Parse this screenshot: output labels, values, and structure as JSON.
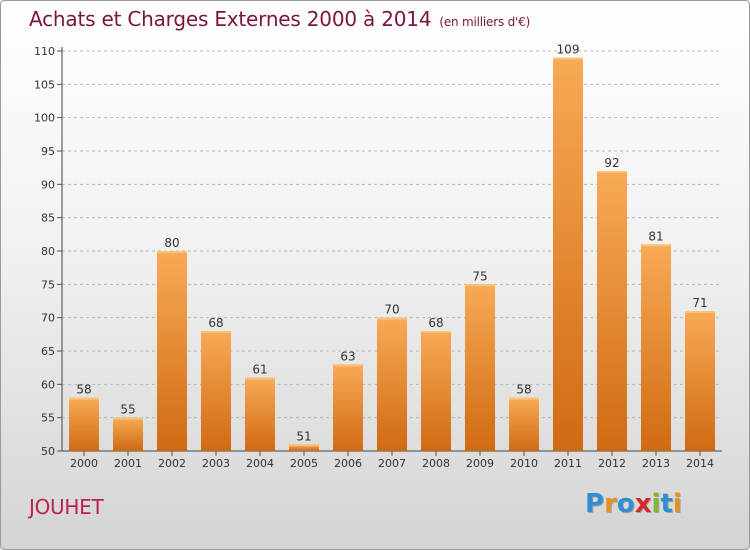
{
  "header": {
    "title": "Achats et Charges Externes 2000 à 2014",
    "unit": "(en milliers d'€)"
  },
  "footer": {
    "commune": "JOUHET",
    "logo_letters": [
      "P",
      "r",
      "o",
      "x",
      "i",
      "t",
      "i"
    ],
    "logo_colors": [
      "#2f8fd1",
      "#e59320",
      "#2f8fd1",
      "#d8262a",
      "#7fb832",
      "#2f8fd1",
      "#e59320"
    ]
  },
  "chart_data": {
    "type": "bar",
    "categories": [
      "2000",
      "2001",
      "2002",
      "2003",
      "2004",
      "2005",
      "2006",
      "2007",
      "2008",
      "2009",
      "2010",
      "2011",
      "2012",
      "2013",
      "2014"
    ],
    "values": [
      58,
      55,
      80,
      68,
      61,
      51,
      63,
      70,
      68,
      75,
      58,
      109,
      92,
      81,
      71
    ],
    "ylim": [
      50,
      110
    ],
    "yticks": [
      50,
      55,
      60,
      65,
      70,
      75,
      80,
      85,
      90,
      95,
      100,
      105,
      110
    ],
    "grid": "y-dashed",
    "bar_color": "#ef8c35",
    "xlabel": "",
    "ylabel": ""
  }
}
